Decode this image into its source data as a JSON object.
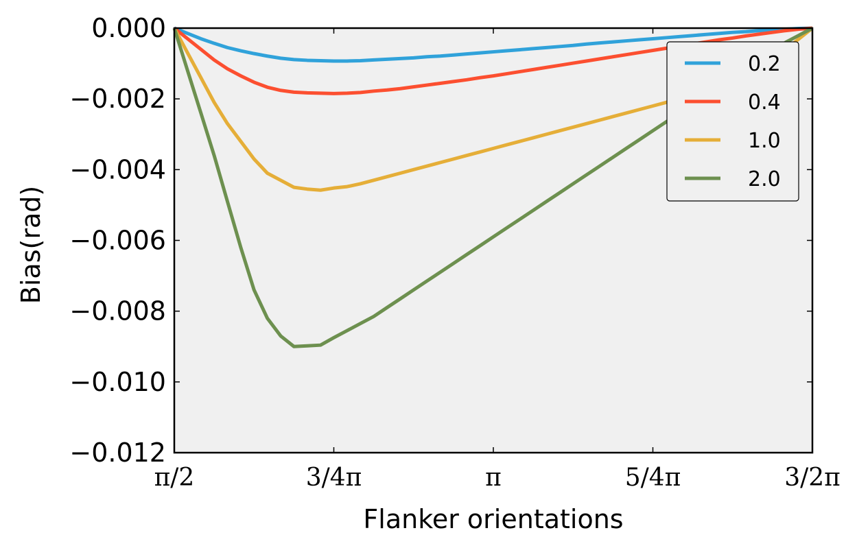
{
  "chart_data": {
    "type": "line",
    "xlabel": "Flanker orientations",
    "ylabel": "Bias(rad)",
    "xlim": [
      0.5,
      1.5
    ],
    "ylim": [
      -0.012,
      0.0
    ],
    "x_unit": "pi",
    "x_ticks": [
      0.5,
      0.75,
      1.0,
      1.25,
      1.5
    ],
    "x_tick_labels": [
      "π/2",
      "3/4π",
      "π",
      "5/4π",
      "3/2π"
    ],
    "y_ticks": [
      0.0,
      -0.002,
      -0.004,
      -0.006,
      -0.008,
      -0.01,
      -0.012
    ],
    "y_tick_labels": [
      "0.000",
      "−0.002",
      "−0.004",
      "−0.006",
      "−0.008",
      "−0.010",
      "−0.012"
    ],
    "grid": false,
    "background": "#f0f0f0",
    "legend_position": "top-right",
    "x": [
      0.5,
      0.5208,
      0.5417,
      0.5625,
      0.5833,
      0.6042,
      0.625,
      0.6458,
      0.6667,
      0.6875,
      0.7083,
      0.7292,
      0.75,
      0.7708,
      0.7917,
      0.8125,
      0.8333,
      0.8542,
      0.875,
      0.8958,
      0.9167,
      0.9375,
      0.9583,
      0.9792,
      1.0,
      1.0208,
      1.0417,
      1.0625,
      1.0833,
      1.1042,
      1.125,
      1.1458,
      1.1667,
      1.1875,
      1.2083,
      1.2292,
      1.25,
      1.2708,
      1.2917,
      1.3125,
      1.3333,
      1.3542,
      1.375,
      1.3958,
      1.4167,
      1.4375,
      1.4583,
      1.4792,
      1.5
    ],
    "series": [
      {
        "name": "0.2",
        "color": "#30a2da",
        "values": [
          0.0,
          -0.00015,
          -0.0003,
          -0.00043,
          -0.00055,
          -0.00064,
          -0.00072,
          -0.00079,
          -0.00085,
          -0.00089,
          -0.00091,
          -0.00092,
          -0.00093,
          -0.00093,
          -0.00092,
          -0.0009,
          -0.00088,
          -0.00086,
          -0.00084,
          -0.00081,
          -0.00079,
          -0.00076,
          -0.00073,
          -0.0007,
          -0.00067,
          -0.00064,
          -0.00061,
          -0.00058,
          -0.00055,
          -0.00052,
          -0.00049,
          -0.00045,
          -0.00042,
          -0.00039,
          -0.00036,
          -0.00033,
          -0.0003,
          -0.00027,
          -0.00024,
          -0.00021,
          -0.00018,
          -0.00015,
          -0.00012,
          -0.0001,
          -7e-05,
          -5e-05,
          -3e-05,
          -1e-05,
          0.0
        ]
      },
      {
        "name": "0.4",
        "color": "#fc4f30",
        "values": [
          0.0,
          -0.0003,
          -0.0006,
          -0.0009,
          -0.00115,
          -0.00135,
          -0.00153,
          -0.00167,
          -0.00176,
          -0.00181,
          -0.00183,
          -0.00184,
          -0.00185,
          -0.00184,
          -0.00182,
          -0.00178,
          -0.00175,
          -0.00171,
          -0.00166,
          -0.00161,
          -0.00156,
          -0.00151,
          -0.00146,
          -0.0014,
          -0.00135,
          -0.00129,
          -0.00123,
          -0.00117,
          -0.00111,
          -0.00105,
          -0.00099,
          -0.00093,
          -0.00087,
          -0.00081,
          -0.00075,
          -0.00069,
          -0.00063,
          -0.00057,
          -0.00051,
          -0.00045,
          -0.00039,
          -0.00033,
          -0.00028,
          -0.00022,
          -0.00017,
          -0.00012,
          -7e-05,
          -3e-05,
          0.0
        ]
      },
      {
        "name": "1.0",
        "color": "#e5ae38",
        "values": [
          0.0,
          -0.0007,
          -0.0014,
          -0.0021,
          -0.0027,
          -0.0032,
          -0.0037,
          -0.0041,
          -0.0043,
          -0.0045,
          -0.00455,
          -0.00458,
          -0.00452,
          -0.00448,
          -0.0044,
          -0.0043,
          -0.0042,
          -0.0041,
          -0.004,
          -0.0039,
          -0.0038,
          -0.0037,
          -0.0036,
          -0.0035,
          -0.0034,
          -0.0033,
          -0.0032,
          -0.0031,
          -0.003,
          -0.0029,
          -0.0028,
          -0.0027,
          -0.0026,
          -0.0025,
          -0.0024,
          -0.0023,
          -0.0022,
          -0.0021,
          -0.002,
          -0.0019,
          -0.0018,
          -0.0017,
          -0.0016,
          -0.0014,
          -0.0012,
          -0.0009,
          -0.0006,
          -0.0003,
          0.0
        ]
      },
      {
        "name": "2.0",
        "color": "#6d904f",
        "values": [
          0.0,
          -0.0012,
          -0.0024,
          -0.0036,
          -0.0049,
          -0.0062,
          -0.0074,
          -0.0082,
          -0.0087,
          -0.009,
          -0.00898,
          -0.00896,
          -0.00875,
          -0.00855,
          -0.00835,
          -0.00815,
          -0.0079,
          -0.00765,
          -0.0074,
          -0.00715,
          -0.0069,
          -0.00665,
          -0.0064,
          -0.00615,
          -0.0059,
          -0.00565,
          -0.0054,
          -0.00515,
          -0.0049,
          -0.00465,
          -0.0044,
          -0.00415,
          -0.0039,
          -0.00365,
          -0.0034,
          -0.00315,
          -0.0029,
          -0.00265,
          -0.0024,
          -0.00215,
          -0.0019,
          -0.00165,
          -0.0014,
          -0.00115,
          -0.0009,
          -0.00065,
          -0.0004,
          -0.0002,
          0.0
        ]
      }
    ]
  }
}
